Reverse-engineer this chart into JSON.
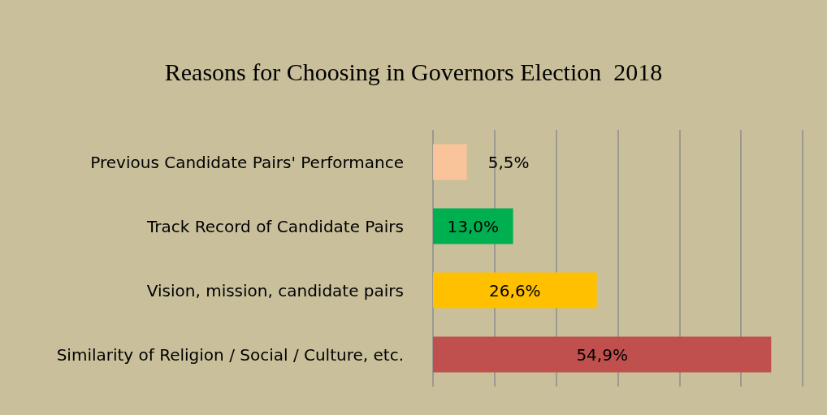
{
  "chart_data": {
    "type": "bar",
    "orientation": "horizontal",
    "title": "Reasons for Choosing in Governors Election  2018",
    "categories": [
      "Previous Candidate Pairs' Performance",
      "Track Record of Candidate Pairs",
      "Vision, mission, candidate pairs",
      "Similarity of Religion / Social / Culture, etc."
    ],
    "values": [
      5.5,
      13.0,
      26.6,
      54.9
    ],
    "colors": [
      "#f9c499",
      "#00b050",
      "#ffc000",
      "#c0504d"
    ],
    "value_labels": [
      "5,5%",
      "13,0%",
      "26,6%",
      "54,9%"
    ],
    "xlim": [
      0,
      60
    ],
    "xticks": [
      {
        "value": 0,
        "label": null
      },
      {
        "value": 10,
        "label": null
      },
      {
        "value": 20,
        "label": null
      },
      {
        "value": 30,
        "label": null
      },
      {
        "value": 40,
        "label": null
      },
      {
        "value": 50,
        "label": null
      },
      {
        "value": 60,
        "label": null
      }
    ],
    "grid": "x",
    "tick_labels": "y"
  }
}
